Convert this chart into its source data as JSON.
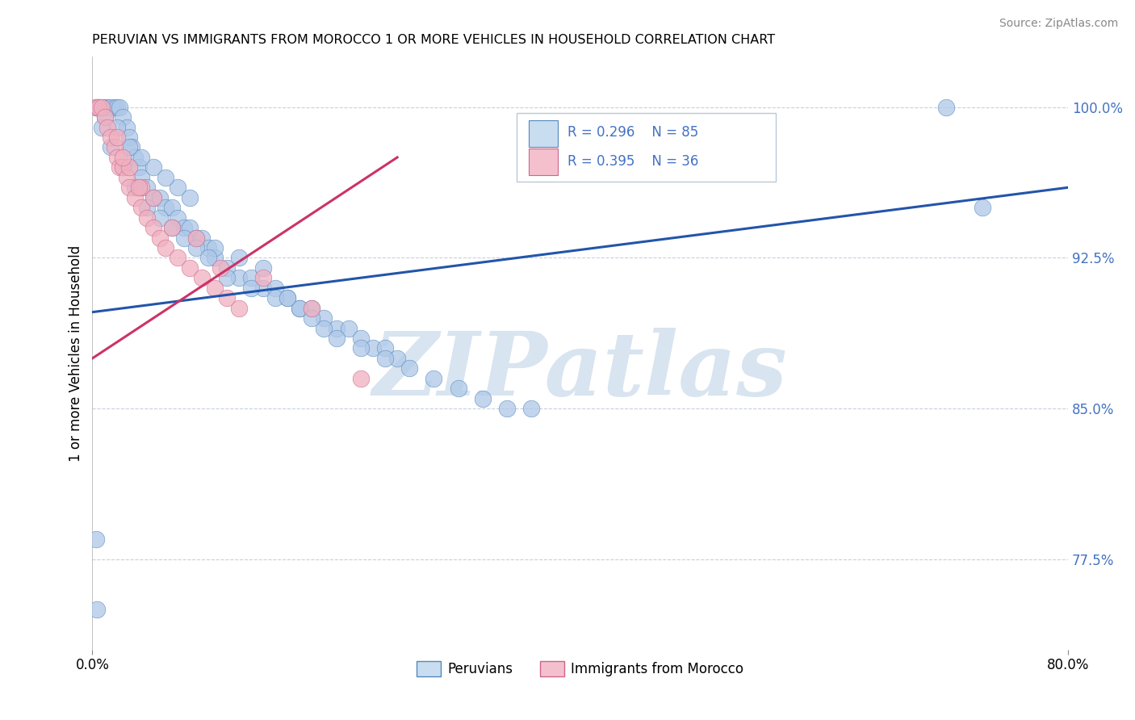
{
  "title": "PERUVIAN VS IMMIGRANTS FROM MOROCCO 1 OR MORE VEHICLES IN HOUSEHOLD CORRELATION CHART",
  "source": "Source: ZipAtlas.com",
  "xlabel_peruvians": "Peruvians",
  "xlabel_morocco": "Immigrants from Morocco",
  "ylabel": "1 or more Vehicles in Household",
  "xlim": [
    0.0,
    80.0
  ],
  "ylim": [
    73.0,
    102.5
  ],
  "ytick_positions": [
    100.0,
    92.5,
    85.0,
    77.5
  ],
  "ytick_labels": [
    "100.0%",
    "92.5%",
    "85.0%",
    "77.5%"
  ],
  "xtick_positions": [
    0.0,
    80.0
  ],
  "xtick_labels": [
    "0.0%",
    "80.0%"
  ],
  "R_blue": 0.296,
  "N_blue": 85,
  "R_pink": 0.395,
  "N_pink": 36,
  "blue_dot_color": "#aec8e8",
  "blue_edge_color": "#5588bb",
  "pink_dot_color": "#f0b0c0",
  "pink_edge_color": "#cc6688",
  "blue_line_color": "#2255aa",
  "pink_line_color": "#cc3366",
  "legend_box_blue": "#c8ddf0",
  "legend_box_pink": "#f5c0ce",
  "legend_text_color": "#4472c4",
  "watermark_text": "ZIPatlas",
  "watermark_color": "#d8e4f0",
  "blue_trend_x": [
    0,
    80
  ],
  "blue_trend_y": [
    89.8,
    96.0
  ],
  "pink_trend_x": [
    0,
    25
  ],
  "pink_trend_y": [
    87.5,
    97.5
  ],
  "blue_x": [
    0.3,
    0.5,
    0.8,
    1.0,
    1.2,
    1.5,
    1.8,
    2.0,
    2.2,
    2.5,
    2.8,
    3.0,
    3.2,
    3.5,
    3.8,
    4.0,
    4.5,
    5.0,
    5.5,
    6.0,
    6.5,
    7.0,
    7.5,
    8.0,
    8.5,
    9.0,
    9.5,
    10.0,
    11.0,
    12.0,
    13.0,
    14.0,
    15.0,
    16.0,
    17.0,
    18.0,
    19.0,
    20.0,
    21.0,
    22.0,
    23.0,
    24.0,
    25.0,
    26.0,
    28.0,
    30.0,
    32.0,
    34.0,
    36.0,
    10.0,
    12.0,
    14.0,
    7.0,
    8.0,
    5.0,
    6.0,
    4.0,
    3.0,
    2.0,
    1.0,
    0.5,
    0.8,
    1.5,
    2.5,
    3.5,
    4.5,
    5.5,
    6.5,
    7.5,
    8.5,
    9.5,
    11.0,
    13.0,
    15.0,
    17.0,
    19.0,
    22.0,
    16.0,
    18.0,
    20.0,
    24.0,
    70.0,
    73.0,
    0.3,
    0.4
  ],
  "blue_y": [
    100.0,
    100.0,
    100.0,
    100.0,
    100.0,
    100.0,
    100.0,
    100.0,
    100.0,
    99.5,
    99.0,
    98.5,
    98.0,
    97.5,
    97.0,
    96.5,
    96.0,
    95.5,
    95.5,
    95.0,
    95.0,
    94.5,
    94.0,
    94.0,
    93.5,
    93.5,
    93.0,
    92.5,
    92.0,
    91.5,
    91.5,
    91.0,
    91.0,
    90.5,
    90.0,
    90.0,
    89.5,
    89.0,
    89.0,
    88.5,
    88.0,
    88.0,
    87.5,
    87.0,
    86.5,
    86.0,
    85.5,
    85.0,
    85.0,
    93.0,
    92.5,
    92.0,
    96.0,
    95.5,
    97.0,
    96.5,
    97.5,
    98.0,
    99.0,
    99.5,
    100.0,
    99.0,
    98.0,
    97.0,
    96.0,
    95.0,
    94.5,
    94.0,
    93.5,
    93.0,
    92.5,
    91.5,
    91.0,
    90.5,
    90.0,
    89.0,
    88.0,
    90.5,
    89.5,
    88.5,
    87.5,
    100.0,
    95.0,
    78.5,
    75.0
  ],
  "pink_x": [
    0.3,
    0.5,
    0.8,
    1.0,
    1.2,
    1.5,
    1.8,
    2.0,
    2.2,
    2.5,
    2.8,
    3.0,
    3.5,
    4.0,
    4.5,
    5.0,
    5.5,
    6.0,
    7.0,
    8.0,
    9.0,
    10.0,
    11.0,
    12.0,
    2.0,
    3.0,
    4.0,
    5.0,
    6.5,
    8.5,
    10.5,
    14.0,
    18.0,
    22.0,
    2.5,
    3.8
  ],
  "pink_y": [
    100.0,
    100.0,
    100.0,
    99.5,
    99.0,
    98.5,
    98.0,
    97.5,
    97.0,
    97.0,
    96.5,
    96.0,
    95.5,
    95.0,
    94.5,
    94.0,
    93.5,
    93.0,
    92.5,
    92.0,
    91.5,
    91.0,
    90.5,
    90.0,
    98.5,
    97.0,
    96.0,
    95.5,
    94.0,
    93.5,
    92.0,
    91.5,
    90.0,
    86.5,
    97.5,
    96.0
  ]
}
